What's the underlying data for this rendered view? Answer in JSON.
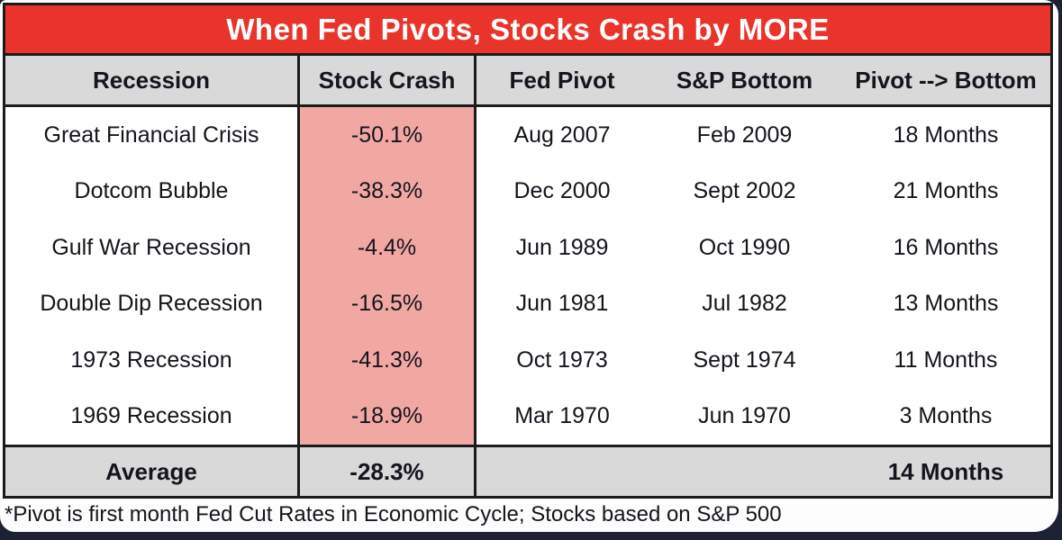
{
  "title": "When Fed Pivots, Stocks Crash by MORE",
  "columns": [
    "Recession",
    "Stock Crash",
    "Fed Pivot",
    "S&P Bottom",
    "Pivot --> Bottom"
  ],
  "rows": [
    {
      "recession": "Great Financial Crisis",
      "crash": "-50.1%",
      "pivot": "Aug 2007",
      "bottom": "Feb 2009",
      "months": "18 Months"
    },
    {
      "recession": "Dotcom Bubble",
      "crash": "-38.3%",
      "pivot": "Dec 2000",
      "bottom": "Sept 2002",
      "months": "21 Months"
    },
    {
      "recession": "Gulf War Recession",
      "crash": "-4.4%",
      "pivot": "Jun 1989",
      "bottom": "Oct 1990",
      "months": "16 Months"
    },
    {
      "recession": "Double Dip Recession",
      "crash": "-16.5%",
      "pivot": "Jun 1981",
      "bottom": "Jul 1982",
      "months": "13 Months"
    },
    {
      "recession": "1973 Recession",
      "crash": "-41.3%",
      "pivot": "Oct 1973",
      "bottom": "Sept 1974",
      "months": "11 Months"
    },
    {
      "recession": "1969 Recession",
      "crash": "-18.9%",
      "pivot": "Mar 1970",
      "bottom": "Jun 1970",
      "months": "3 Months"
    }
  ],
  "average": {
    "label": "Average",
    "crash": "-28.3%",
    "months": "14 Months"
  },
  "footnote": "*Pivot is first month Fed Cut Rates in Economic Cycle; Stocks based on S&P 500",
  "colors": {
    "red": "#e8342b",
    "pink": "#f2a8a2",
    "gray": "#d9d9d9",
    "navy": "#1c2134"
  },
  "chart_data": {
    "type": "table",
    "title": "When Fed Pivots, Stocks Crash by MORE",
    "columns": [
      "Recession",
      "Stock Crash",
      "Fed Pivot",
      "S&P Bottom",
      "Pivot --> Bottom"
    ],
    "rows": [
      [
        "Great Financial Crisis",
        "-50.1%",
        "Aug 2007",
        "Feb 2009",
        "18 Months"
      ],
      [
        "Dotcom Bubble",
        "-38.3%",
        "Dec 2000",
        "Sept 2002",
        "21 Months"
      ],
      [
        "Gulf War Recession",
        "-4.4%",
        "Jun 1989",
        "Oct 1990",
        "16 Months"
      ],
      [
        "Double Dip Recession",
        "-16.5%",
        "Jun 1981",
        "Jul 1982",
        "13 Months"
      ],
      [
        "1973 Recession",
        "-41.3%",
        "Oct 1973",
        "Sept 1974",
        "11 Months"
      ],
      [
        "1969 Recession",
        "-18.9%",
        "Mar 1970",
        "Jun 1970",
        "3 Months"
      ]
    ],
    "summary_row": [
      "Average",
      "-28.3%",
      "",
      "",
      "14 Months"
    ],
    "crash_values_pct": [
      -50.1,
      -38.3,
      -4.4,
      -16.5,
      -41.3,
      -18.9
    ],
    "months_values": [
      18,
      21,
      16,
      13,
      11,
      3
    ],
    "average_crash_pct": -28.3,
    "average_months": 14,
    "footnote": "*Pivot is first month Fed Cut Rates in Economic Cycle; Stocks based on S&P 500"
  }
}
